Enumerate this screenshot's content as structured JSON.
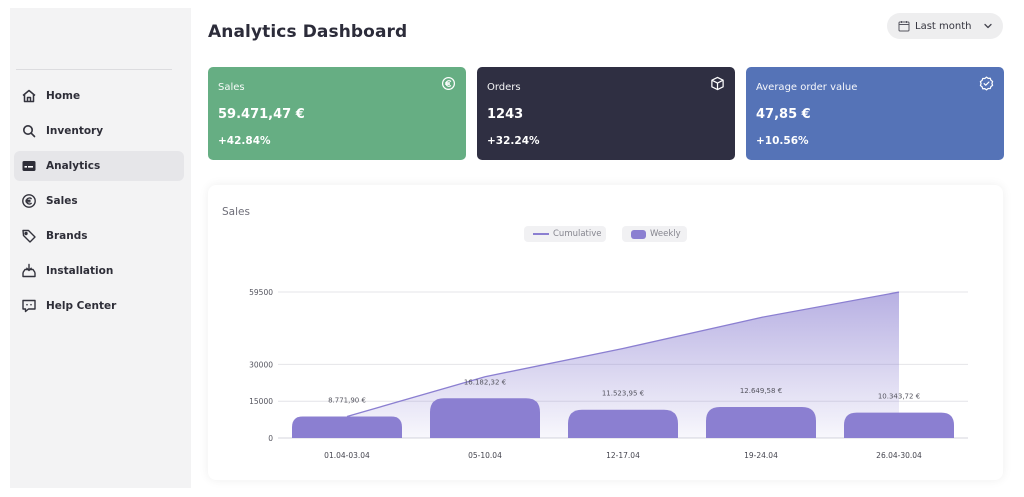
{
  "sidebar": {
    "items": [
      {
        "label": "Home",
        "icon": "home-icon",
        "active": false
      },
      {
        "label": "Inventory",
        "icon": "search-icon",
        "active": false
      },
      {
        "label": "Analytics",
        "icon": "analytics-icon",
        "active": true
      },
      {
        "label": "Sales",
        "icon": "euro-icon",
        "active": false
      },
      {
        "label": "Brands",
        "icon": "tag-icon",
        "active": false
      },
      {
        "label": "Installation",
        "icon": "install-icon",
        "active": false
      },
      {
        "label": "Help Center",
        "icon": "chat-icon",
        "active": false
      }
    ]
  },
  "header": {
    "title": "Analytics Dashboard",
    "period": "Last month"
  },
  "kpis": [
    {
      "title": "Sales",
      "value": "59.471,47 €",
      "delta": "+42.84%",
      "icon": "euro-icon",
      "color": "#66ae83"
    },
    {
      "title": "Orders",
      "value": "1243",
      "delta": "+32.24%",
      "icon": "box-icon",
      "color": "#2f2f42"
    },
    {
      "title": "Average order value",
      "value": "47,85 €",
      "delta": "+10.56%",
      "icon": "check-badge-icon",
      "color": "#5573b7"
    }
  ],
  "chart": {
    "title": "Sales",
    "legend": {
      "cumulative": "Cumulative",
      "weekly": "Weekly"
    }
  },
  "chart_data": {
    "type": "bar",
    "title": "Sales",
    "categories": [
      "01.04-03.04",
      "05-10.04",
      "12-17.04",
      "19-24.04",
      "26.04-30.04"
    ],
    "series": [
      {
        "name": "Weekly",
        "type": "bar",
        "values": [
          8771.9,
          16182.32,
          11523.95,
          12649.58,
          10343.72
        ]
      },
      {
        "name": "Cumulative",
        "type": "area",
        "values": [
          8771.9,
          24954.22,
          36478.17,
          49127.75,
          59471.47
        ]
      }
    ],
    "bar_labels": [
      "8.771,90 €",
      "16.182,32 €",
      "11.523,95 €",
      "12.649,58 €",
      "10.343,72 €"
    ],
    "y_ticks": [
      0,
      15000,
      30000,
      59500
    ],
    "ylim": [
      0,
      59500
    ],
    "grid": true,
    "legend_position": "top-center",
    "colors": {
      "bar": "#8b7fd1",
      "line": "#8b7fd1"
    }
  }
}
